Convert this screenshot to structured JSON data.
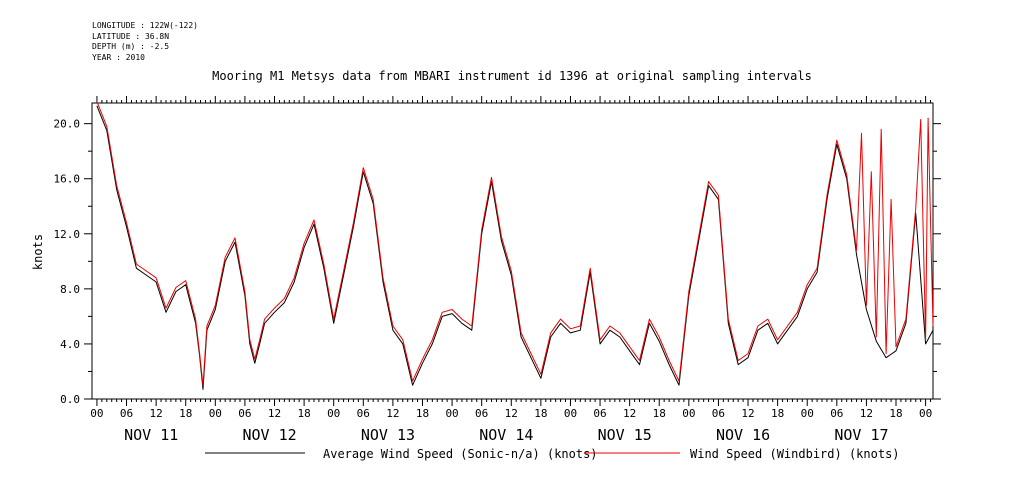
{
  "meta": {
    "longitude": "LONGITUDE : 122W(-122)",
    "latitude": "LATITUDE : 36.8N",
    "depth": "DEPTH (m) : -2.5",
    "year": "YEAR : 2010"
  },
  "chart_data": {
    "type": "line",
    "title": "Mooring M1 Metsys data from MBARI instrument id 1396 at original sampling intervals",
    "ylabel": "knots",
    "xlabel": "",
    "ylim": [
      0,
      21.5
    ],
    "yticks": [
      0.0,
      4.0,
      8.0,
      12.0,
      16.0,
      20.0
    ],
    "ytick_labels": [
      "0.0",
      "4.0",
      "8.0",
      "12.0",
      "16.0",
      "20.0"
    ],
    "xlim_hours": [
      -1,
      169.5
    ],
    "hour_tick_labels": [
      "00",
      "06",
      "12",
      "18"
    ],
    "day_labels": [
      "NOV 11",
      "NOV 12",
      "NOV 13",
      "NOV 14",
      "NOV 15",
      "NOV 16",
      "NOV 17"
    ],
    "legend_placement": "bottom",
    "grid": false,
    "series": [
      {
        "name": "Average Wind Speed (Sonic-n/a) (knots)",
        "color": "#000000",
        "points": [
          [
            0,
            21.3
          ],
          [
            2,
            19.5
          ],
          [
            4,
            15.2
          ],
          [
            6,
            12.5
          ],
          [
            8,
            9.5
          ],
          [
            10,
            9
          ],
          [
            12,
            8.5
          ],
          [
            14,
            6.3
          ],
          [
            16,
            7.8
          ],
          [
            18,
            8.3
          ],
          [
            20,
            5.5
          ],
          [
            20.8,
            3.2
          ],
          [
            21.5,
            0.7
          ],
          [
            22.3,
            5
          ],
          [
            24,
            6.5
          ],
          [
            26,
            10
          ],
          [
            28,
            11.4
          ],
          [
            30,
            7.5
          ],
          [
            31,
            4
          ],
          [
            32,
            2.6
          ],
          [
            33,
            4
          ],
          [
            34,
            5.5
          ],
          [
            36,
            6.3
          ],
          [
            38,
            7
          ],
          [
            40,
            8.5
          ],
          [
            42,
            11
          ],
          [
            44,
            12.7
          ],
          [
            46,
            9.5
          ],
          [
            48,
            5.5
          ],
          [
            50,
            9
          ],
          [
            52,
            12.5
          ],
          [
            54,
            16.5
          ],
          [
            56,
            14.2
          ],
          [
            58,
            8.5
          ],
          [
            60,
            5
          ],
          [
            62,
            4
          ],
          [
            64,
            1
          ],
          [
            66,
            2.6
          ],
          [
            68,
            4
          ],
          [
            70,
            6
          ],
          [
            72,
            6.2
          ],
          [
            74,
            5.5
          ],
          [
            76,
            5
          ],
          [
            78,
            12
          ],
          [
            80,
            15.8
          ],
          [
            82,
            11.5
          ],
          [
            84,
            9
          ],
          [
            86,
            4.5
          ],
          [
            88,
            3
          ],
          [
            90,
            1.5
          ],
          [
            92,
            4.5
          ],
          [
            94,
            5.5
          ],
          [
            96,
            4.8
          ],
          [
            98,
            5
          ],
          [
            100,
            9.2
          ],
          [
            102,
            4
          ],
          [
            104,
            5
          ],
          [
            106,
            4.5
          ],
          [
            108,
            3.5
          ],
          [
            110,
            2.5
          ],
          [
            112,
            5.5
          ],
          [
            114,
            4.2
          ],
          [
            116,
            2.5
          ],
          [
            118,
            1
          ],
          [
            120,
            7.5
          ],
          [
            122,
            11.5
          ],
          [
            124,
            15.5
          ],
          [
            126,
            14.5
          ],
          [
            128,
            5.5
          ],
          [
            130,
            2.5
          ],
          [
            132,
            3
          ],
          [
            134,
            5
          ],
          [
            136,
            5.5
          ],
          [
            138,
            4
          ],
          [
            140,
            5
          ],
          [
            142,
            6
          ],
          [
            144,
            8
          ],
          [
            146,
            9.2
          ],
          [
            148,
            14.5
          ],
          [
            150,
            18.5
          ],
          [
            152,
            16
          ],
          [
            154,
            10.5
          ],
          [
            156,
            6.5
          ],
          [
            158,
            4.2
          ],
          [
            160,
            3
          ],
          [
            162,
            3.5
          ],
          [
            164,
            5.5
          ],
          [
            166,
            13.5
          ],
          [
            168,
            4
          ],
          [
            169.5,
            5
          ]
        ]
      },
      {
        "name": "Wind Speed (Windbird) (knots)",
        "color": "#ee0000",
        "points": [
          [
            0,
            21.6
          ],
          [
            2,
            19.8
          ],
          [
            4,
            15.5
          ],
          [
            6,
            12.8
          ],
          [
            8,
            9.8
          ],
          [
            10,
            9.3
          ],
          [
            12,
            8.8
          ],
          [
            14,
            6.6
          ],
          [
            16,
            8.1
          ],
          [
            18,
            8.6
          ],
          [
            20,
            5.8
          ],
          [
            20.8,
            3.4
          ],
          [
            21.5,
            1
          ],
          [
            22.3,
            5.3
          ],
          [
            24,
            6.8
          ],
          [
            26,
            10.3
          ],
          [
            28,
            11.7
          ],
          [
            30,
            7.8
          ],
          [
            31,
            4.3
          ],
          [
            32,
            2.9
          ],
          [
            33,
            4.3
          ],
          [
            34,
            5.8
          ],
          [
            36,
            6.6
          ],
          [
            38,
            7.3
          ],
          [
            40,
            8.8
          ],
          [
            42,
            11.3
          ],
          [
            44,
            13
          ],
          [
            46,
            9.8
          ],
          [
            48,
            5.8
          ],
          [
            50,
            9.3
          ],
          [
            52,
            12.8
          ],
          [
            54,
            16.8
          ],
          [
            56,
            14.5
          ],
          [
            58,
            8.8
          ],
          [
            60,
            5.3
          ],
          [
            62,
            4.3
          ],
          [
            64,
            1.3
          ],
          [
            66,
            2.9
          ],
          [
            68,
            4.3
          ],
          [
            70,
            6.3
          ],
          [
            72,
            6.5
          ],
          [
            74,
            5.8
          ],
          [
            76,
            5.3
          ],
          [
            78,
            12.3
          ],
          [
            80,
            16.1
          ],
          [
            82,
            11.8
          ],
          [
            84,
            9.3
          ],
          [
            86,
            4.8
          ],
          [
            88,
            3.3
          ],
          [
            90,
            1.8
          ],
          [
            92,
            4.8
          ],
          [
            94,
            5.8
          ],
          [
            96,
            5.1
          ],
          [
            98,
            5.3
          ],
          [
            100,
            9.5
          ],
          [
            102,
            4.3
          ],
          [
            104,
            5.3
          ],
          [
            106,
            4.8
          ],
          [
            108,
            3.8
          ],
          [
            110,
            2.8
          ],
          [
            112,
            5.8
          ],
          [
            114,
            4.5
          ],
          [
            116,
            2.8
          ],
          [
            118,
            1.3
          ],
          [
            120,
            7.8
          ],
          [
            122,
            11.8
          ],
          [
            124,
            15.8
          ],
          [
            126,
            14.8
          ],
          [
            128,
            5.8
          ],
          [
            130,
            2.8
          ],
          [
            132,
            3.3
          ],
          [
            134,
            5.3
          ],
          [
            136,
            5.8
          ],
          [
            138,
            4.3
          ],
          [
            140,
            5.3
          ],
          [
            142,
            6.3
          ],
          [
            144,
            8.3
          ],
          [
            146,
            9.5
          ],
          [
            148,
            14.8
          ],
          [
            150,
            18.8
          ],
          [
            152,
            16.3
          ],
          [
            154,
            10.8
          ],
          [
            155,
            19.3
          ],
          [
            156,
            6.8
          ],
          [
            157,
            16.5
          ],
          [
            158,
            4.5
          ],
          [
            159,
            19.6
          ],
          [
            160,
            3.3
          ],
          [
            161,
            14.5
          ],
          [
            162,
            3.8
          ],
          [
            164,
            5.8
          ],
          [
            166,
            13.8
          ],
          [
            167,
            20.3
          ],
          [
            168,
            4.3
          ],
          [
            168.5,
            20.4
          ],
          [
            169.5,
            5.3
          ]
        ]
      }
    ]
  }
}
